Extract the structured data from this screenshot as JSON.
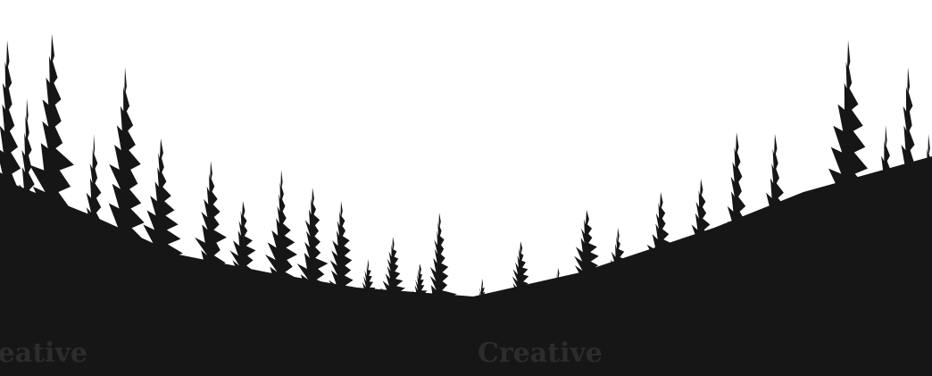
{
  "watermark": "Creative"
}
